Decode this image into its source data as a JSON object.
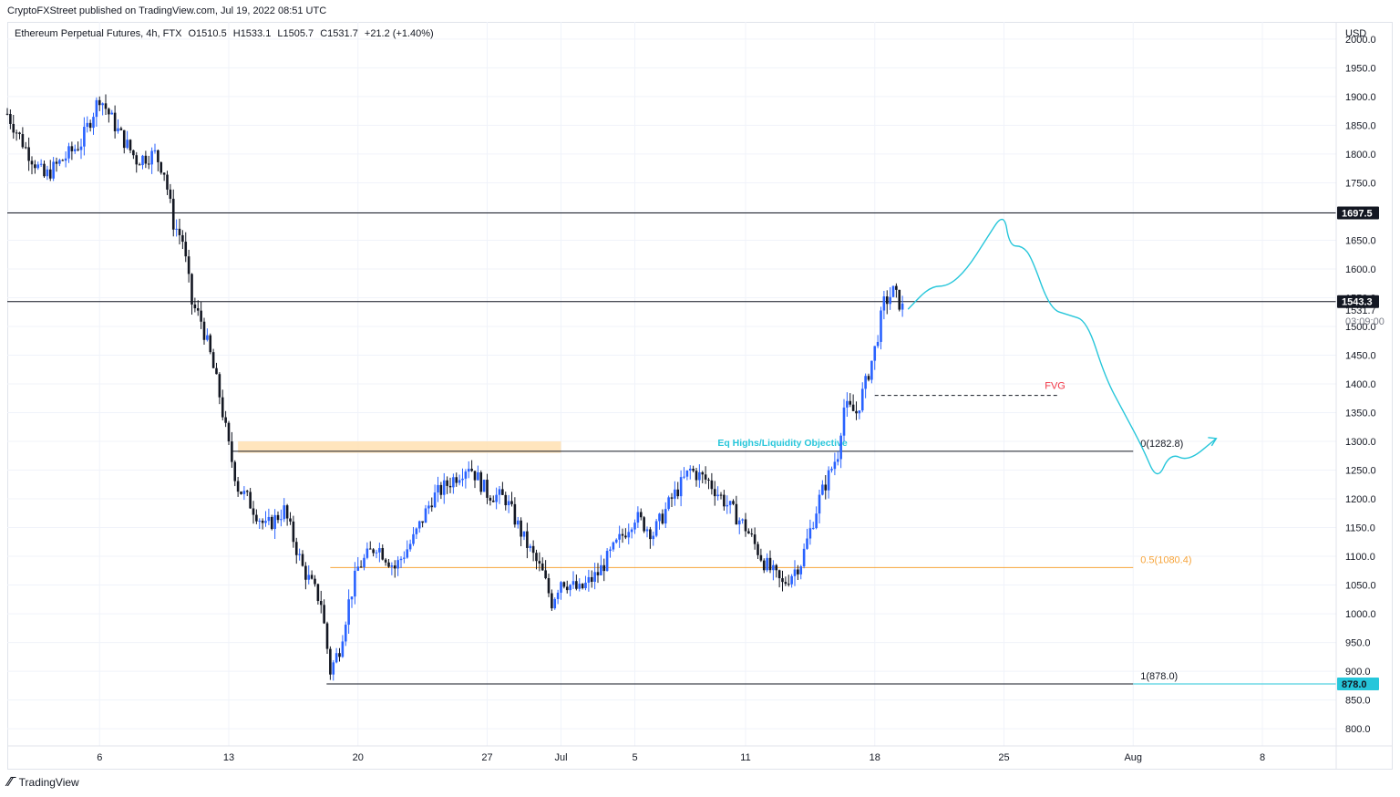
{
  "attribution": "CryptoFXStreet published on TradingView.com, Jul 19, 2022 08:51 UTC",
  "footer": {
    "logo_text": "TradingView",
    "logo_icon": "tradingview-logo-icon"
  },
  "legend": {
    "symbol": "Ethereum Perpetual Futures, 4h, FTX",
    "open": "O1510.5",
    "high": "H1533.1",
    "low": "L1505.7",
    "close": "C1531.7",
    "change": "+21.2 (+1.40%)"
  },
  "colors": {
    "up": "#2962ff",
    "down": "#131722",
    "projection": "#26c6da",
    "fib_half": "#f7a43a",
    "fvg": "#f23645",
    "zone": "#ffe0b2",
    "grid": "#f0f3fa"
  },
  "chart_data": {
    "type": "candlestick",
    "currency": "USD",
    "ylim": [
      770,
      2030
    ],
    "y_ticks": [
      800,
      850,
      900,
      950,
      1000,
      1050,
      1100,
      1150,
      1200,
      1250,
      1300,
      1350,
      1400,
      1450,
      1500,
      1550,
      1600,
      1650,
      1700,
      1750,
      1800,
      1850,
      1900,
      1950,
      2000
    ],
    "x_ticks": [
      {
        "label": "6",
        "day": 6
      },
      {
        "label": "13",
        "day": 13
      },
      {
        "label": "20",
        "day": 20
      },
      {
        "label": "27",
        "day": 27
      },
      {
        "label": "Jul",
        "day": 31
      },
      {
        "label": "5",
        "day": 35
      },
      {
        "label": "11",
        "day": 41
      },
      {
        "label": "18",
        "day": 48
      },
      {
        "label": "25",
        "day": 55
      },
      {
        "label": "Aug",
        "day": 62
      },
      {
        "label": "8",
        "day": 69
      }
    ],
    "price_path": [
      [
        1,
        1870
      ],
      [
        2,
        1810
      ],
      [
        3,
        1760
      ],
      [
        4,
        1790
      ],
      [
        5,
        1820
      ],
      [
        6,
        1900
      ],
      [
        7,
        1840
      ],
      [
        8,
        1790
      ],
      [
        9,
        1800
      ],
      [
        9.5,
        1770
      ],
      [
        10,
        1680
      ],
      [
        10.5,
        1650
      ],
      [
        11,
        1540
      ],
      [
        11.5,
        1510
      ],
      [
        12,
        1450
      ],
      [
        12.5,
        1380
      ],
      [
        13,
        1290
      ],
      [
        13.5,
        1220
      ],
      [
        14,
        1200
      ],
      [
        15,
        1150
      ],
      [
        16,
        1180
      ],
      [
        17,
        1080
      ],
      [
        18,
        1020
      ],
      [
        18.5,
        900
      ],
      [
        19,
        940
      ],
      [
        19.5,
        1020
      ],
      [
        20,
        1080
      ],
      [
        21,
        1120
      ],
      [
        22,
        1080
      ],
      [
        23,
        1130
      ],
      [
        24,
        1200
      ],
      [
        25,
        1230
      ],
      [
        26,
        1260
      ],
      [
        27,
        1210
      ],
      [
        28,
        1200
      ],
      [
        29,
        1130
      ],
      [
        30,
        1070
      ],
      [
        30.5,
        1020
      ],
      [
        31,
        1060
      ],
      [
        32,
        1040
      ],
      [
        33,
        1070
      ],
      [
        34,
        1120
      ],
      [
        35,
        1170
      ],
      [
        36,
        1140
      ],
      [
        37,
        1200
      ],
      [
        38,
        1250
      ],
      [
        39,
        1230
      ],
      [
        40,
        1190
      ],
      [
        41,
        1150
      ],
      [
        42,
        1090
      ],
      [
        43,
        1050
      ],
      [
        44,
        1090
      ],
      [
        45,
        1200
      ],
      [
        45.5,
        1240
      ],
      [
        46,
        1280
      ],
      [
        46.3,
        1360
      ],
      [
        47,
        1350
      ],
      [
        47.5,
        1400
      ],
      [
        48,
        1460
      ],
      [
        48.5,
        1540
      ],
      [
        49,
        1560
      ],
      [
        49.5,
        1531.7
      ]
    ],
    "projection_path": [
      [
        49.8,
        1530
      ],
      [
        51,
        1570
      ],
      [
        52,
        1570
      ],
      [
        53,
        1600
      ],
      [
        54,
        1650
      ],
      [
        55,
        1700
      ],
      [
        55.3,
        1640
      ],
      [
        56,
        1640
      ],
      [
        56.5,
        1620
      ],
      [
        57.5,
        1530
      ],
      [
        58.5,
        1520
      ],
      [
        59.5,
        1510
      ],
      [
        60.5,
        1410
      ],
      [
        61.5,
        1350
      ],
      [
        62.5,
        1290
      ],
      [
        63.3,
        1230
      ],
      [
        64,
        1280
      ],
      [
        65,
        1265
      ],
      [
        66.5,
        1305
      ]
    ],
    "levels": [
      {
        "name": "resistance-1697",
        "value": 1697.5,
        "label": "1697.5"
      },
      {
        "name": "resistance-1543",
        "value": 1543.3,
        "label": "1543.3"
      },
      {
        "name": "fib-0",
        "value": 1282.8,
        "label": "0(1282.8)"
      },
      {
        "name": "fib-0.5",
        "value": 1080.4,
        "label": "0.5(1080.4)"
      },
      {
        "name": "fib-1",
        "value": 878.0,
        "label": "1(878.0)"
      }
    ],
    "last_price": {
      "value": 1531.7,
      "label": "1531.7",
      "countdown": "03:09:00"
    },
    "low_marker": {
      "value": 878.0,
      "label": "878.0"
    },
    "fvg": {
      "label": "FVG",
      "value": 1380,
      "start_day": 48,
      "end_day": 58
    },
    "liquidity_zone": {
      "low": 1280,
      "high": 1300,
      "start_day": 13.5,
      "end_day": 31
    },
    "annotation": {
      "label": "Eq Highs/Liquidity Objective",
      "value": 1282.8,
      "day": 43
    }
  }
}
